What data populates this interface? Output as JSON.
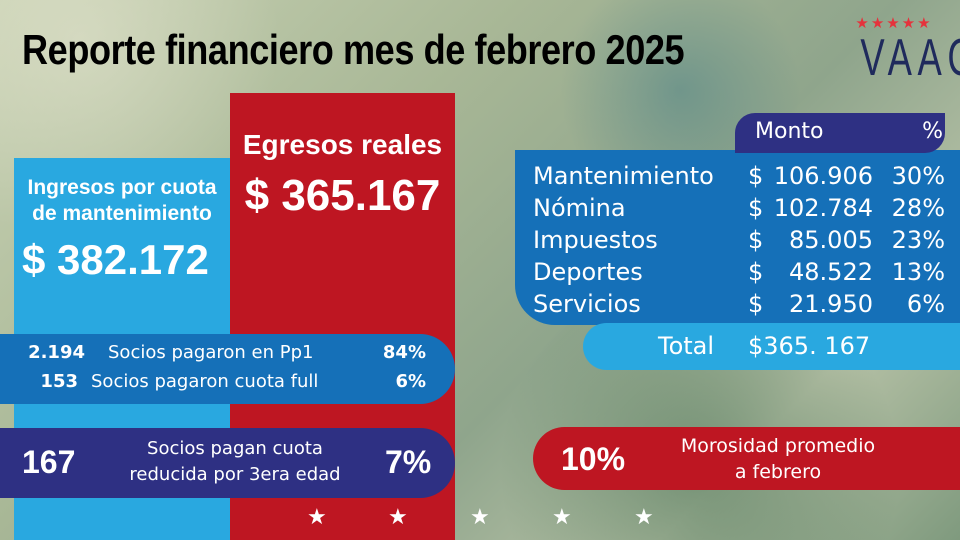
{
  "title": "Reporte financiero mes de febrero 2025",
  "logo": {
    "text": "VAAC",
    "stars": "★★★★★"
  },
  "ingresos": {
    "label_line1": "Ingresos por cuota",
    "label_line2": "de mantenimiento",
    "amount": "$ 382.172"
  },
  "egresos": {
    "label": "Egresos reales",
    "amount": "$ 365.167"
  },
  "socios": [
    {
      "count": "2.194",
      "label": "Socios pagaron en Pp1",
      "percent": "84%"
    },
    {
      "count": "153",
      "label": "Socios pagaron cuota full",
      "percent": "6%"
    }
  ],
  "tercera_edad": {
    "count": "167",
    "label_line1": "Socios pagan cuota",
    "label_line2": "reducida por 3era edad",
    "percent": "7%"
  },
  "egresos_table": {
    "headers": {
      "amount": "Monto",
      "percent": "%"
    },
    "rows": [
      {
        "concept": "Mantenimiento",
        "currency": "$",
        "amount": "106.906",
        "percent": "30%"
      },
      {
        "concept": "Nómina",
        "currency": "$",
        "amount": "102.784",
        "percent": "28%"
      },
      {
        "concept": "Impuestos",
        "currency": "$",
        "amount": "85.005",
        "percent": "23%"
      },
      {
        "concept": "Deportes",
        "currency": "$",
        "amount": "48.522",
        "percent": "13%"
      },
      {
        "concept": "Servicios",
        "currency": "$",
        "amount": "21.950",
        "percent": "6%"
      }
    ],
    "total_label": "Total",
    "total_value": "$365. 167"
  },
  "morosidad": {
    "percent": "10%",
    "label_line1": "Morosidad promedio",
    "label_line2": "a febrero"
  },
  "footer_star": "★",
  "colors": {
    "light_blue": "#29a8e0",
    "red": "#be1622",
    "blue": "#1570b8",
    "navy": "#2e3083"
  }
}
